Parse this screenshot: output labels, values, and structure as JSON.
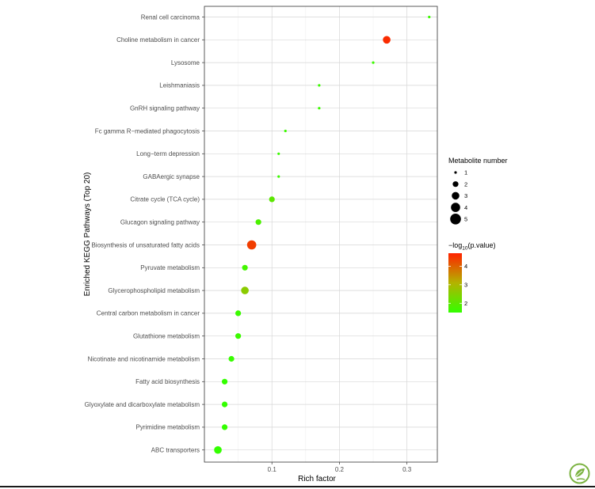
{
  "chart_data": {
    "type": "scatter",
    "xlabel": "Rich factor",
    "ylabel": "Enriched KEGG Pathways (Top 20)",
    "xlim": [
      0.0,
      0.345
    ],
    "xticks": [
      {
        "value": 0.1,
        "label": "0.1"
      },
      {
        "value": 0.2,
        "label": "0.2"
      },
      {
        "value": 0.3,
        "label": "0.3"
      }
    ],
    "grid": true,
    "legend_placement": "right",
    "size_legend": {
      "title": "Metabolite number",
      "entries": [
        {
          "value": 1,
          "label": "1"
        },
        {
          "value": 2,
          "label": "2"
        },
        {
          "value": 3,
          "label": "3"
        },
        {
          "value": 4,
          "label": "4"
        },
        {
          "value": 5,
          "label": "5"
        }
      ]
    },
    "color_legend": {
      "title_prefix": "−log",
      "title_sub": "10",
      "title_suffix": "(p.value)",
      "low_color": "#33ff00",
      "mid_color": "#b3b300",
      "high_color": "#ff2200",
      "range": [
        1.5,
        4.7
      ],
      "ticks": [
        {
          "value": 2,
          "label": "2"
        },
        {
          "value": 3,
          "label": "3"
        },
        {
          "value": 4,
          "label": "4"
        }
      ]
    },
    "points": [
      {
        "pathway": "Renal cell carcinoma",
        "rich_factor": 0.333,
        "count": 1,
        "log10p": 1.6
      },
      {
        "pathway": "Choline metabolism in cancer",
        "rich_factor": 0.27,
        "count": 3,
        "log10p": 4.6
      },
      {
        "pathway": "Lysosome",
        "rich_factor": 0.25,
        "count": 1,
        "log10p": 1.6
      },
      {
        "pathway": "Leishmaniasis",
        "rich_factor": 0.17,
        "count": 1,
        "log10p": 1.6
      },
      {
        "pathway": "GnRH signaling pathway",
        "rich_factor": 0.17,
        "count": 1,
        "log10p": 1.6
      },
      {
        "pathway": "Fc gamma R−mediated phagocytosis",
        "rich_factor": 0.12,
        "count": 1,
        "log10p": 1.6
      },
      {
        "pathway": "Long−term depression",
        "rich_factor": 0.11,
        "count": 1,
        "log10p": 1.6
      },
      {
        "pathway": "GABAergic synapse",
        "rich_factor": 0.11,
        "count": 1,
        "log10p": 1.6
      },
      {
        "pathway": "Citrate cycle (TCA cycle)",
        "rich_factor": 0.1,
        "count": 2,
        "log10p": 2.0
      },
      {
        "pathway": "Glucagon signaling pathway",
        "rich_factor": 0.08,
        "count": 2,
        "log10p": 1.8
      },
      {
        "pathway": "Biosynthesis of unsaturated fatty acids",
        "rich_factor": 0.07,
        "count": 4,
        "log10p": 4.4
      },
      {
        "pathway": "Pyruvate metabolism",
        "rich_factor": 0.06,
        "count": 2,
        "log10p": 1.7
      },
      {
        "pathway": "Glycerophospholipid metabolism",
        "rich_factor": 0.06,
        "count": 3,
        "log10p": 2.6
      },
      {
        "pathway": "Central carbon metabolism in cancer",
        "rich_factor": 0.05,
        "count": 2,
        "log10p": 1.6
      },
      {
        "pathway": "Glutathione metabolism",
        "rich_factor": 0.05,
        "count": 2,
        "log10p": 1.6
      },
      {
        "pathway": "Nicotinate and nicotinamide metabolism",
        "rich_factor": 0.04,
        "count": 2,
        "log10p": 1.55
      },
      {
        "pathway": "Fatty acid biosynthesis",
        "rich_factor": 0.03,
        "count": 2,
        "log10p": 1.5
      },
      {
        "pathway": "Glyoxylate and dicarboxylate metabolism",
        "rich_factor": 0.03,
        "count": 2,
        "log10p": 1.5
      },
      {
        "pathway": "Pyrimidine metabolism",
        "rich_factor": 0.03,
        "count": 2,
        "log10p": 1.5
      },
      {
        "pathway": "ABC transporters",
        "rich_factor": 0.02,
        "count": 3,
        "log10p": 1.5
      }
    ]
  },
  "logo": {
    "name": "leaf-logo",
    "color": "#7cb342"
  }
}
